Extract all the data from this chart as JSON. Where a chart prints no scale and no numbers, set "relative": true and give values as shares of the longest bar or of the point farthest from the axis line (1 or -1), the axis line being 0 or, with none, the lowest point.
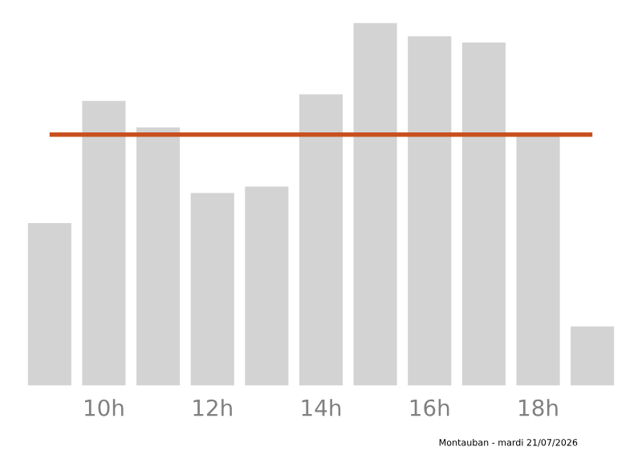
{
  "chart_data": {
    "type": "bar",
    "relative": true,
    "categories": [
      null,
      "10h",
      null,
      "12h",
      null,
      "14h",
      null,
      "16h",
      null,
      "18h",
      null
    ],
    "values": [
      0.448,
      0.785,
      0.712,
      0.531,
      0.549,
      0.803,
      1,
      0.963,
      0.946,
      0.694,
      0.163
    ],
    "color": "#d3d3d3",
    "ref_lines": [
      {
        "axis": "y",
        "value": 0.692,
        "color": "#c8501e",
        "line_style": "solid"
      }
    ],
    "annotations": [
      "Montauban - mardi 21/07/2026"
    ],
    "grid": false,
    "legend": false
  }
}
